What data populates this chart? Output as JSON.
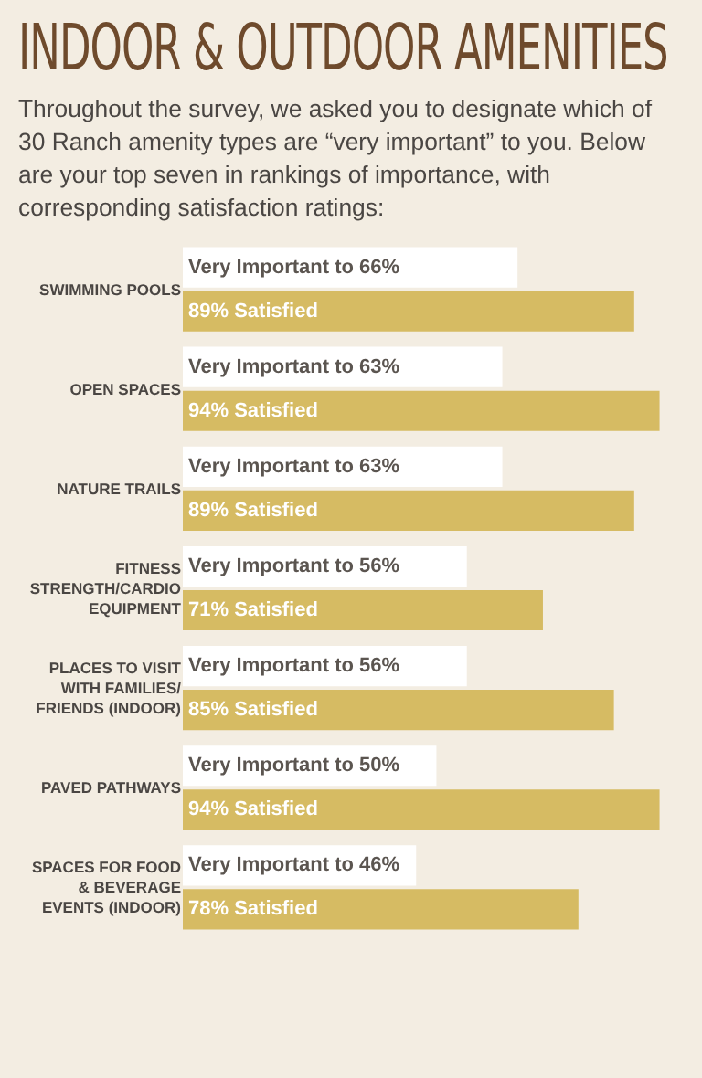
{
  "chart_data": {
    "type": "bar",
    "orientation": "horizontal",
    "title": "INDOOR & OUTDOOR AMENITIES",
    "subtitle": "Throughout the survey, we asked you to designate which of 30 Ranch amenity types are “very important” to you. Below are your top seven in rankings of importance, with corresponding satisfaction ratings:",
    "categories": [
      "SWIMMING POOLS",
      "OPEN SPACES",
      "NATURE TRAILS",
      "FITNESS STRENGTH/CARDIO EQUIPMENT",
      "PLACES TO VISIT WITH FAMILIES/ FRIENDS (INDOOR)",
      "PAVED PATHWAYS",
      "SPACES FOR FOOD & BEVERAGE EVENTS (INDOOR)"
    ],
    "series": [
      {
        "color": "#ffffff",
        "values": [
          66,
          63,
          63,
          56,
          56,
          50,
          46
        ],
        "value_labels": [
          "Very Important to 66%",
          "Very Important to 63%",
          "Very Important to 63%",
          "Very Important to 56%",
          "Very Important to 56%",
          "Very Important to 50%",
          "Very Important to 46%"
        ]
      },
      {
        "color": "#d6bb63",
        "values": [
          89,
          94,
          89,
          71,
          85,
          94,
          78
        ],
        "value_labels": [
          "89% Satisfied",
          "94% Satisfied",
          "89% Satisfied",
          "71% Satisfied",
          "85% Satisfied",
          "94% Satisfied",
          "78% Satisfied"
        ]
      }
    ],
    "grid": false
  }
}
